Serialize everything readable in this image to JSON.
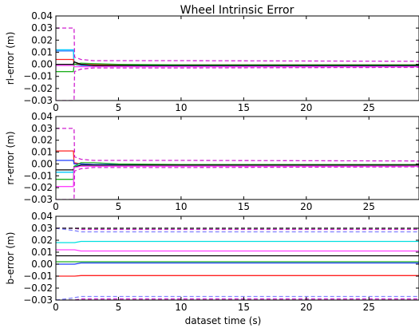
{
  "title": "Wheel Intrinsic Error",
  "chart_data": [
    {
      "type": "line",
      "ylabel": "rl-error (m)",
      "xlabel": "",
      "xlim": [
        0,
        29
      ],
      "ylim": [
        -0.03,
        0.04
      ],
      "x_ticks": [
        0,
        5,
        10,
        15,
        20,
        25
      ],
      "y_ticks": [
        -0.03,
        -0.02,
        -0.01,
        0.0,
        0.01,
        0.02,
        0.03,
        0.04
      ],
      "y_tick_labels": [
        "−0.03",
        "−0.02",
        "−0.01",
        "0.00",
        "0.01",
        "0.02",
        "0.03",
        "0.04"
      ],
      "grid": false,
      "series": [
        {
          "color": "#1f77ff",
          "dash": false,
          "x": [
            0,
            1.4,
            1.45,
            2,
            3,
            5,
            10,
            29
          ],
          "y": [
            0.011,
            0.011,
            0.0,
            -0.001,
            -0.001,
            -0.001,
            -0.001,
            -0.001
          ]
        },
        {
          "color": "#00c8ff",
          "dash": false,
          "x": [
            0,
            1.4,
            1.45,
            2,
            3,
            5,
            10,
            29
          ],
          "y": [
            0.012,
            0.012,
            0.0,
            0.0,
            -0.0005,
            -0.0008,
            -0.001,
            -0.001
          ]
        },
        {
          "color": "#ff2020",
          "dash": false,
          "x": [
            0,
            1.4,
            1.45,
            2,
            3,
            5,
            29
          ],
          "y": [
            0.004,
            0.004,
            0.0,
            0.0,
            -0.0005,
            -0.0005,
            -0.0005
          ]
        },
        {
          "color": "#20b020",
          "dash": false,
          "x": [
            0,
            1.4,
            1.45,
            2,
            3,
            5,
            10,
            29
          ],
          "y": [
            -0.006,
            -0.006,
            0.0,
            0.001,
            0.0005,
            0.0,
            -0.0005,
            -0.0005
          ]
        },
        {
          "color": "#ff40ff",
          "dash": false,
          "x": [
            0,
            1.4,
            1.45,
            2,
            3,
            5,
            29
          ],
          "y": [
            -0.001,
            -0.001,
            -0.002,
            -0.002,
            -0.002,
            -0.002,
            -0.002
          ]
        },
        {
          "color": "#000000",
          "dash": false,
          "x": [
            0,
            1.4,
            1.45,
            2,
            3,
            5,
            29
          ],
          "y": [
            0.0,
            0.0,
            0.002,
            0.0,
            -0.001,
            -0.001,
            -0.001
          ]
        },
        {
          "color": "#d020d0",
          "dash": true,
          "x": [
            0,
            1.45,
            1.5,
            2,
            3,
            5,
            10,
            29
          ],
          "y": [
            0.03,
            0.03,
            0.006,
            0.004,
            0.003,
            0.003,
            0.003,
            0.0025
          ]
        },
        {
          "color": "#d020d0",
          "dash": true,
          "x": [
            0,
            1.45,
            1.5,
            2,
            3,
            5,
            10,
            29
          ],
          "y": [
            -0.03,
            -0.03,
            -0.006,
            -0.004,
            -0.003,
            -0.003,
            -0.003,
            -0.0025
          ]
        }
      ]
    },
    {
      "type": "line",
      "ylabel": "rr-error (m)",
      "xlabel": "",
      "xlim": [
        0,
        29
      ],
      "ylim": [
        -0.03,
        0.04
      ],
      "x_ticks": [
        0,
        5,
        10,
        15,
        20,
        25
      ],
      "y_ticks": [
        -0.03,
        -0.02,
        -0.01,
        0.0,
        0.01,
        0.02,
        0.03,
        0.04
      ],
      "y_tick_labels": [
        "−0.03",
        "−0.02",
        "−0.01",
        "0.00",
        "0.01",
        "0.02",
        "0.03",
        "0.04"
      ],
      "grid": false,
      "series": [
        {
          "color": "#ff2020",
          "dash": false,
          "x": [
            0,
            1.4,
            1.45,
            2,
            3,
            5,
            29
          ],
          "y": [
            0.011,
            0.011,
            0.001,
            0.0,
            -0.0005,
            -0.0005,
            -0.0005
          ]
        },
        {
          "color": "#1f3fff",
          "dash": false,
          "x": [
            0,
            1.4,
            1.45,
            2,
            3,
            5,
            29
          ],
          "y": [
            0.003,
            0.003,
            0.0,
            0.0,
            -0.0005,
            -0.0005,
            -0.0005
          ]
        },
        {
          "color": "#00c8ff",
          "dash": false,
          "x": [
            0,
            1.4,
            1.45,
            2,
            3,
            5,
            29
          ],
          "y": [
            -0.007,
            -0.007,
            -0.002,
            -0.001,
            -0.001,
            -0.001,
            -0.001
          ]
        },
        {
          "color": "#20b020",
          "dash": false,
          "x": [
            0,
            1.4,
            1.45,
            2,
            3,
            5,
            10,
            29
          ],
          "y": [
            -0.013,
            -0.013,
            -0.002,
            0.001,
            0.001,
            0.0,
            -0.0005,
            -0.0005
          ]
        },
        {
          "color": "#000000",
          "dash": false,
          "x": [
            0,
            1.4,
            1.45,
            2,
            3,
            5,
            29
          ],
          "y": [
            -0.005,
            -0.005,
            -0.003,
            -0.001,
            -0.001,
            -0.001,
            -0.001
          ]
        },
        {
          "color": "#ff40ff",
          "dash": false,
          "x": [
            0,
            1.4,
            1.45,
            2,
            3,
            5,
            29
          ],
          "y": [
            -0.019,
            -0.019,
            -0.003,
            -0.002,
            -0.002,
            -0.002,
            -0.002
          ]
        },
        {
          "color": "#d020d0",
          "dash": true,
          "x": [
            0,
            1.45,
            1.5,
            2,
            3,
            5,
            10,
            29
          ],
          "y": [
            0.03,
            0.03,
            0.006,
            0.004,
            0.003,
            0.003,
            0.003,
            0.0025
          ]
        },
        {
          "color": "#d020d0",
          "dash": true,
          "x": [
            0,
            1.45,
            1.5,
            2,
            3,
            5,
            10,
            29
          ],
          "y": [
            -0.03,
            -0.03,
            -0.006,
            -0.004,
            -0.003,
            -0.003,
            -0.003,
            -0.0025
          ]
        }
      ]
    },
    {
      "type": "line",
      "ylabel": "b-error (m)",
      "xlabel": "dataset time (s)",
      "xlim": [
        0,
        29
      ],
      "ylim": [
        -0.03,
        0.04
      ],
      "x_ticks": [
        0,
        5,
        10,
        15,
        20,
        25
      ],
      "y_ticks": [
        -0.03,
        -0.02,
        -0.01,
        0.0,
        0.01,
        0.02,
        0.03,
        0.04
      ],
      "y_tick_labels": [
        "−0.03",
        "−0.02",
        "−0.01",
        "0.00",
        "0.01",
        "0.02",
        "0.03",
        "0.04"
      ],
      "grid": false,
      "series": [
        {
          "color": "#00e0e0",
          "dash": false,
          "x": [
            0,
            1.5,
            2,
            3,
            29
          ],
          "y": [
            0.018,
            0.018,
            0.019,
            0.019,
            0.019
          ]
        },
        {
          "color": "#ff40ff",
          "dash": false,
          "x": [
            0,
            1.5,
            2,
            3,
            29
          ],
          "y": [
            0.012,
            0.012,
            0.011,
            0.011,
            0.011
          ]
        },
        {
          "color": "#000000",
          "dash": false,
          "x": [
            0,
            2,
            29
          ],
          "y": [
            0.007,
            0.007,
            0.007
          ]
        },
        {
          "color": "#20b020",
          "dash": false,
          "x": [
            0,
            2,
            29
          ],
          "y": [
            0.002,
            0.002,
            0.002
          ]
        },
        {
          "color": "#1f3fff",
          "dash": false,
          "x": [
            0,
            1.5,
            2,
            29
          ],
          "y": [
            0.0,
            0.0,
            0.001,
            0.001
          ]
        },
        {
          "color": "#ff2020",
          "dash": false,
          "x": [
            0,
            1.5,
            2,
            29
          ],
          "y": [
            -0.01,
            -0.01,
            -0.0095,
            -0.0095
          ]
        },
        {
          "color": "#d020d0",
          "dash": true,
          "x": [
            0,
            1.5,
            2,
            29
          ],
          "y": [
            0.03,
            0.03,
            0.029,
            0.029
          ]
        },
        {
          "color": "#000000",
          "dash": true,
          "x": [
            0,
            1.5,
            2,
            29
          ],
          "y": [
            0.03,
            0.03,
            0.03,
            0.03
          ]
        },
        {
          "color": "#8080ff",
          "dash": true,
          "x": [
            0,
            1.5,
            2,
            3,
            29
          ],
          "y": [
            0.03,
            0.028,
            0.027,
            0.027,
            0.027
          ]
        },
        {
          "color": "#d020d0",
          "dash": true,
          "x": [
            0,
            1.5,
            2,
            29
          ],
          "y": [
            -0.03,
            -0.03,
            -0.029,
            -0.029
          ]
        },
        {
          "color": "#000000",
          "dash": true,
          "x": [
            0,
            1.5,
            2,
            29
          ],
          "y": [
            -0.03,
            -0.03,
            -0.03,
            -0.03
          ]
        },
        {
          "color": "#8080ff",
          "dash": true,
          "x": [
            0,
            1.5,
            2,
            3,
            29
          ],
          "y": [
            -0.03,
            -0.028,
            -0.027,
            -0.027,
            -0.027
          ]
        }
      ]
    }
  ]
}
